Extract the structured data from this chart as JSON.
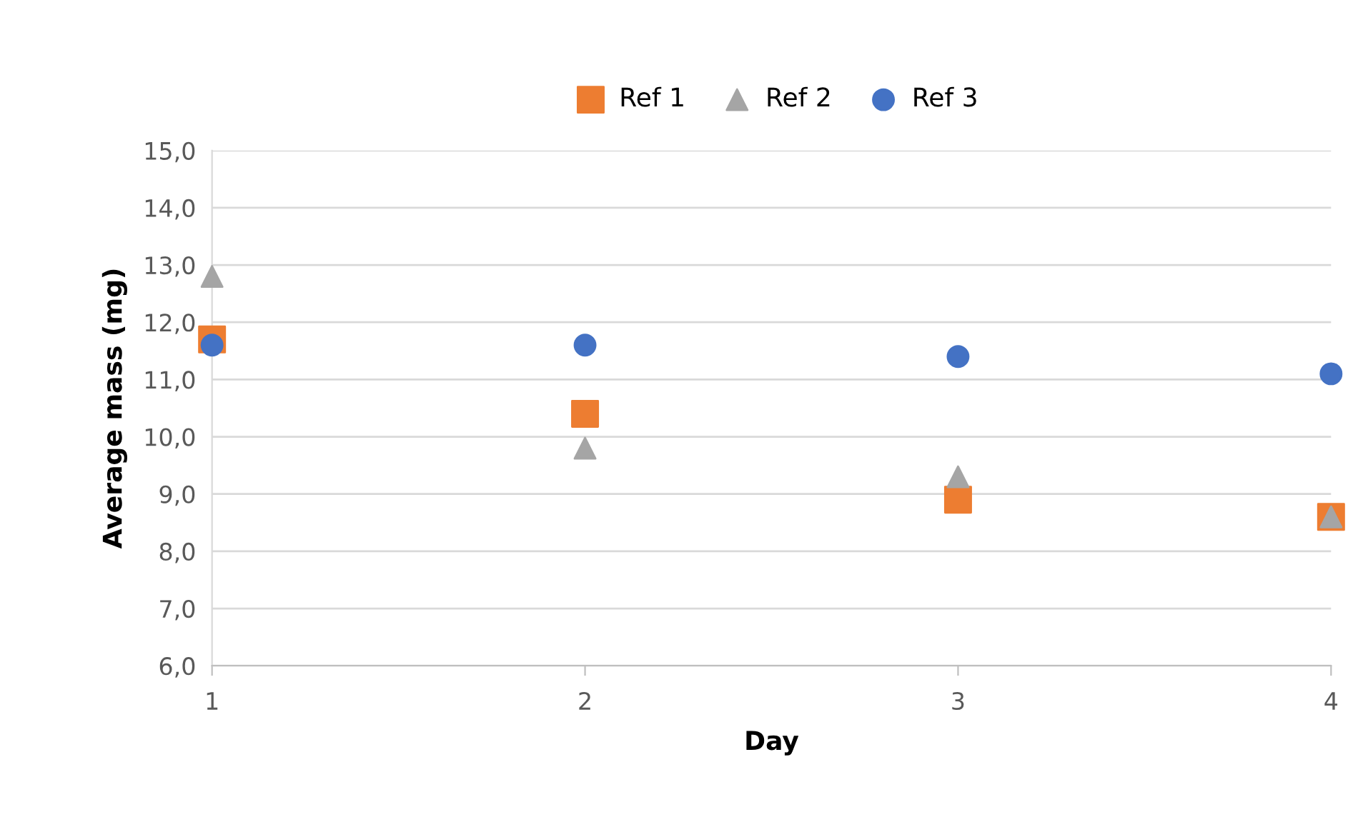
{
  "chart_data": {
    "type": "scatter",
    "xlabel": "Day",
    "ylabel": "Average mass (mg)",
    "x": [
      1,
      2,
      3,
      4
    ],
    "series": [
      {
        "name": "Ref 1",
        "color": "#ed7d31",
        "marker": "square",
        "values": [
          11.7,
          10.4,
          8.9,
          8.6
        ]
      },
      {
        "name": "Ref 2",
        "color": "#a5a5a5",
        "marker": "triangle",
        "values": [
          12.8,
          9.8,
          9.3,
          8.6
        ]
      },
      {
        "name": "Ref 3",
        "color": "#4472c4",
        "marker": "circle",
        "values": [
          11.6,
          11.6,
          11.4,
          11.1
        ]
      }
    ],
    "xlim": [
      1,
      4
    ],
    "xticks": [
      1,
      2,
      3,
      4
    ],
    "ylim": [
      6,
      15
    ],
    "yticks": [
      {
        "value": 6,
        "label": "6,0"
      },
      {
        "value": 7,
        "label": "7,0"
      },
      {
        "value": 8,
        "label": "8,0"
      },
      {
        "value": 9,
        "label": "9,0"
      },
      {
        "value": 10,
        "label": "10,0"
      },
      {
        "value": 11,
        "label": "11,0"
      },
      {
        "value": 12,
        "label": "12,0"
      },
      {
        "value": 13,
        "label": "13,0"
      },
      {
        "value": 14,
        "label": "14,0"
      },
      {
        "value": 15,
        "label": "15,0"
      }
    ],
    "grid": "y",
    "legend": "top"
  }
}
